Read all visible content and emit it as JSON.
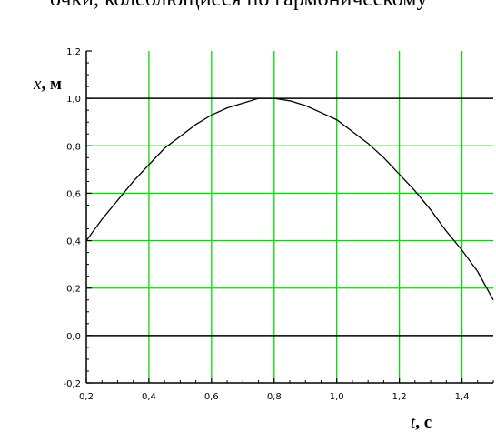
{
  "caption": "очки, колеблющиеся по гармоническому",
  "chart_data": {
    "type": "line",
    "xlabel_var": "t",
    "xlabel_unit": ", с",
    "ylabel_var": "x",
    "ylabel_unit": ", м",
    "xlim": [
      0.2,
      1.5
    ],
    "ylim": [
      -0.2,
      1.2
    ],
    "xticks": [
      0.2,
      0.4,
      0.6,
      0.8,
      1.0,
      1.2,
      1.4
    ],
    "xtick_labels": [
      "0,2",
      "0,4",
      "0,6",
      "0,8",
      "1,0",
      "1,2",
      "1,4"
    ],
    "yticks": [
      -0.2,
      0.0,
      0.2,
      0.4,
      0.6,
      0.8,
      1.0,
      1.2
    ],
    "ytick_labels": [
      "-0,2",
      "0,0",
      "0,2",
      "0,4",
      "0,6",
      "0,8",
      "1,0",
      "1,2"
    ],
    "grid": true,
    "grid_color": "#00dd00",
    "highlight_lines_y": [
      0.0,
      1.0
    ],
    "line_color": "#000000",
    "series": [
      {
        "x": [
          0.2,
          0.25,
          0.3,
          0.35,
          0.4,
          0.45,
          0.5,
          0.55,
          0.6,
          0.65,
          0.7,
          0.75,
          0.8,
          0.85,
          0.9,
          0.95,
          1.0,
          1.05,
          1.1,
          1.15,
          1.2,
          1.25,
          1.3,
          1.35,
          1.4,
          1.45,
          1.5
        ],
        "y": [
          0.4,
          0.49,
          0.57,
          0.65,
          0.72,
          0.79,
          0.84,
          0.89,
          0.93,
          0.96,
          0.98,
          1.0,
          1.0,
          0.99,
          0.97,
          0.94,
          0.91,
          0.86,
          0.81,
          0.75,
          0.68,
          0.61,
          0.53,
          0.44,
          0.36,
          0.27,
          0.15
        ]
      }
    ]
  }
}
